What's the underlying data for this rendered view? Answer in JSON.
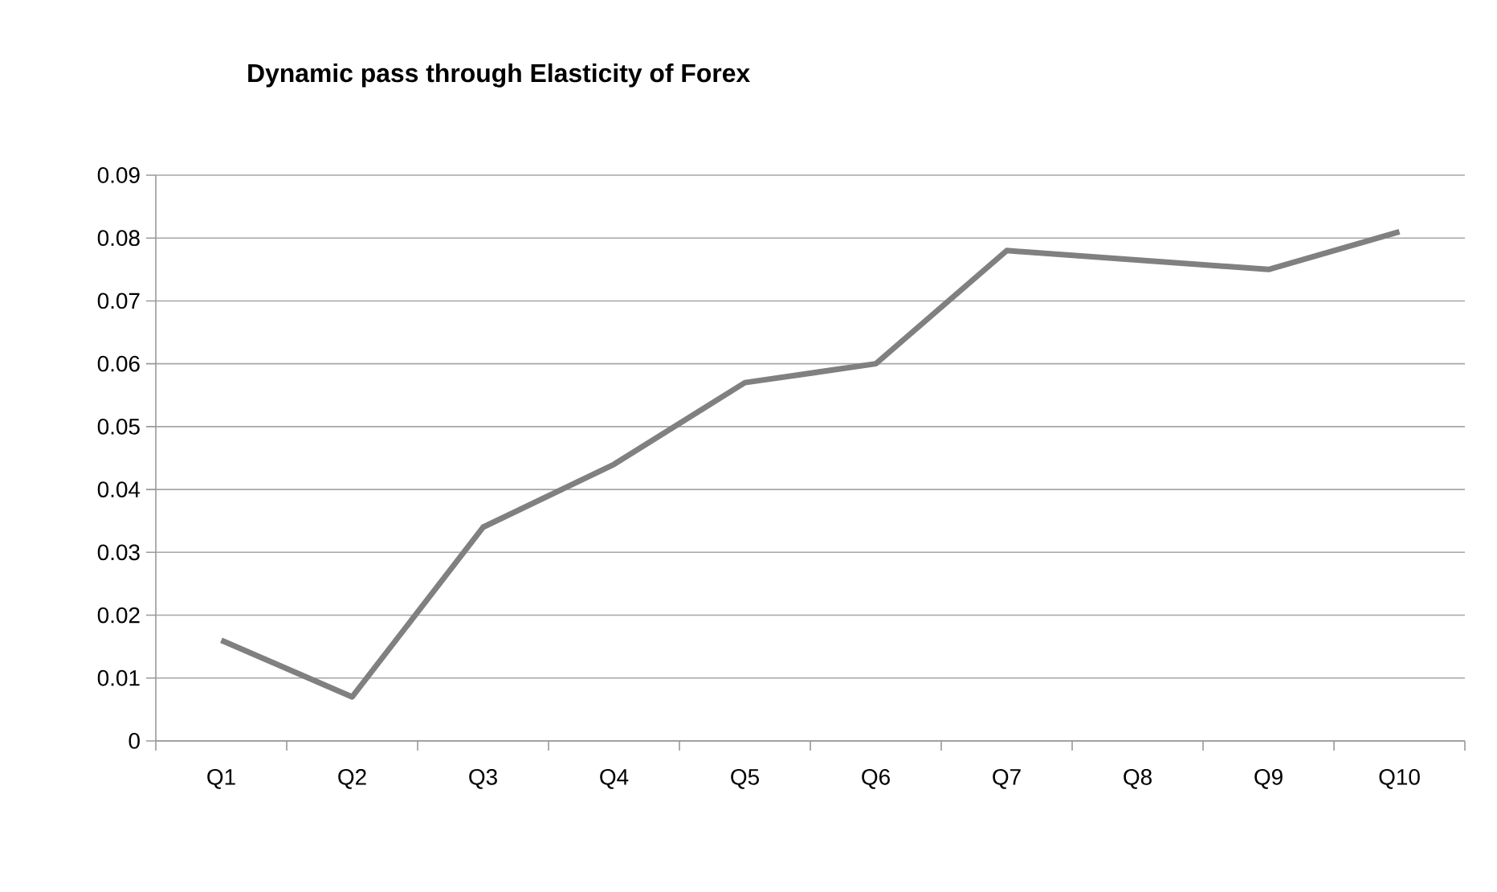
{
  "chart_data": {
    "type": "line",
    "title": "Dynamic pass through Elasticity of Forex",
    "categories": [
      "Q1",
      "Q2",
      "Q3",
      "Q4",
      "Q5",
      "Q6",
      "Q7",
      "Q8",
      "Q9",
      "Q10"
    ],
    "values": [
      0.016,
      0.007,
      0.034,
      0.044,
      0.057,
      0.06,
      0.078,
      0.0765,
      0.075,
      0.081
    ],
    "color": "#808080",
    "ylim": [
      0,
      0.09
    ],
    "yticks": [
      {
        "value": 0,
        "label": "0"
      },
      0.01,
      0.02,
      0.03,
      0.04,
      0.05,
      0.06,
      0.07,
      0.08,
      0.09
    ],
    "grid": "y",
    "marker": "none",
    "line_style": "solid"
  }
}
